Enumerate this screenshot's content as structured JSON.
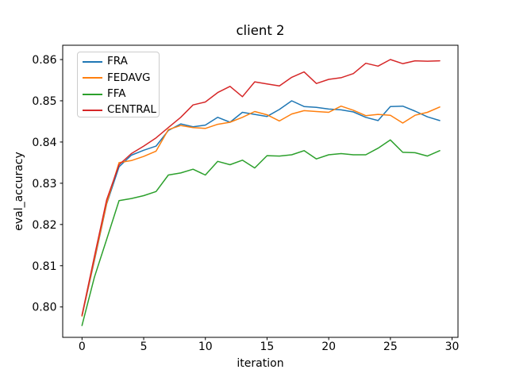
{
  "chart_data": {
    "type": "line",
    "title": "client 2",
    "xlabel": "iteration",
    "ylabel": "eval_accuracy",
    "xlim": [
      -1.566,
      30.48
    ],
    "ylim": [
      0.79263,
      0.86347
    ],
    "xticks": [
      0,
      5,
      10,
      15,
      20,
      25,
      30
    ],
    "yticks": [
      0.8,
      0.81,
      0.82,
      0.83,
      0.84,
      0.85,
      0.86
    ],
    "grid": false,
    "legend_position": "upper left",
    "x": [
      0,
      1,
      2,
      3,
      4,
      5,
      6,
      7,
      8,
      9,
      10,
      11,
      12,
      13,
      14,
      15,
      16,
      17,
      18,
      19,
      20,
      21,
      22,
      23,
      24,
      25,
      26,
      27,
      28,
      29
    ],
    "series": [
      {
        "name": "FRA",
        "color": "#1f77b4",
        "values": [
          0.7978,
          0.8112,
          0.825,
          0.834,
          0.8368,
          0.838,
          0.839,
          0.8428,
          0.8444,
          0.8437,
          0.8441,
          0.846,
          0.8448,
          0.8472,
          0.8467,
          0.8462,
          0.8479,
          0.85,
          0.8486,
          0.8484,
          0.848,
          0.8478,
          0.8473,
          0.846,
          0.8452,
          0.8486,
          0.8487,
          0.8475,
          0.8461,
          0.8452
        ]
      },
      {
        "name": "FEDAVG",
        "color": "#ff7f0e",
        "values": [
          0.7978,
          0.8115,
          0.8252,
          0.835,
          0.8355,
          0.8365,
          0.8378,
          0.843,
          0.844,
          0.8435,
          0.8433,
          0.8443,
          0.8448,
          0.846,
          0.8474,
          0.8466,
          0.8451,
          0.8468,
          0.8476,
          0.8474,
          0.8472,
          0.8487,
          0.8477,
          0.8464,
          0.8467,
          0.8465,
          0.8446,
          0.8465,
          0.8472,
          0.8485
        ]
      },
      {
        "name": "FFA",
        "color": "#2ca02c",
        "values": [
          0.7955,
          0.8072,
          0.8164,
          0.8258,
          0.8263,
          0.827,
          0.828,
          0.832,
          0.8325,
          0.8334,
          0.832,
          0.8353,
          0.8345,
          0.8356,
          0.8337,
          0.8367,
          0.8366,
          0.8369,
          0.8379,
          0.8359,
          0.8369,
          0.8372,
          0.8369,
          0.8369,
          0.8385,
          0.8405,
          0.8375,
          0.8374,
          0.8366,
          0.8379
        ]
      },
      {
        "name": "CENTRAL",
        "color": "#d62728",
        "values": [
          0.798,
          0.8122,
          0.826,
          0.8345,
          0.8372,
          0.839,
          0.841,
          0.8435,
          0.846,
          0.849,
          0.8497,
          0.852,
          0.8535,
          0.851,
          0.8546,
          0.8541,
          0.8536,
          0.8557,
          0.857,
          0.8542,
          0.8552,
          0.8556,
          0.8566,
          0.8591,
          0.8584,
          0.86,
          0.859,
          0.8597,
          0.8596,
          0.8597
        ]
      }
    ],
    "axis_color": "#000000",
    "text_color": "#000000"
  }
}
